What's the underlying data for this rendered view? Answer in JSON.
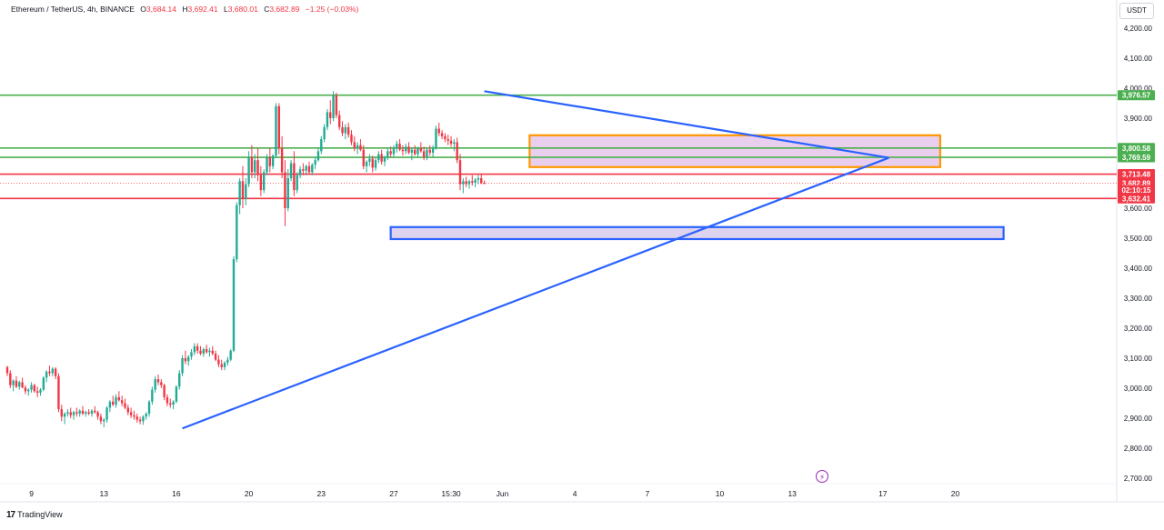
{
  "header": {
    "symbol": "Ethereum / TetherUS, 4h, BINANCE",
    "open_label": "O",
    "open_value": "3,684.14",
    "high_label": "H",
    "high_value": "3,692.41",
    "low_label": "L",
    "low_value": "3,680.01",
    "close_label": "C",
    "close_value": "3,682.89",
    "change": "−1.25 (−0.03%)"
  },
  "currency_button": "USDT",
  "footer": {
    "brand": "TradingView"
  },
  "colors": {
    "bull": "#22ab94",
    "bear": "#f23645",
    "green_line": "#4caf50",
    "red_line": "#f23645",
    "trend_line": "#2962ff",
    "orange_box": "#ff9800",
    "box_fill": "#e1bee7",
    "blue_box_fill": "#d1c4e9",
    "icons": "#9c27b0"
  },
  "chart_data": {
    "type": "candlestick",
    "y_axis": {
      "ticks": [
        2700,
        2800,
        2900,
        3000,
        3100,
        3200,
        3300,
        3400,
        3500,
        3600,
        3700,
        3800,
        3900,
        4000,
        4100,
        4200
      ],
      "tick_labels": [
        "2,700.00",
        "2,800.00",
        "2,900.00",
        "3,000.00",
        "3,100.00",
        "3,200.00",
        "3,300.00",
        "3,400.00",
        "3,500.00",
        "3,600.00",
        "3,700.00",
        "3,800.00",
        "3,900.00",
        "4,000.00",
        "4,100.00",
        "4,200.00"
      ],
      "range": [
        2670,
        4240
      ]
    },
    "x_axis": {
      "labels": [
        "9",
        "13",
        "16",
        "20",
        "23",
        "27",
        "15:30",
        "Jun",
        "4",
        "7",
        "10",
        "13",
        "17",
        "20"
      ],
      "bar_index": [
        8,
        32,
        56,
        80,
        104,
        128,
        147,
        164,
        188,
        212,
        236,
        260,
        290,
        314
      ],
      "bar_range": [
        -4,
        360
      ]
    },
    "price_labels": [
      {
        "text": "3,976.57",
        "value": 3976.57,
        "kind": "green"
      },
      {
        "text": "3,800.58",
        "value": 3800.58,
        "kind": "green"
      },
      {
        "text": "3,769.59",
        "value": 3769.59,
        "kind": "green"
      },
      {
        "text": "3,713.48",
        "value": 3713.48,
        "kind": "red"
      },
      {
        "text": "3,682.89",
        "value": 3682.89,
        "kind": "red"
      },
      {
        "text": "02:10:15",
        "value": 3660,
        "kind": "red"
      },
      {
        "text": "3,632.41",
        "value": 3632.41,
        "kind": "red"
      }
    ],
    "horizontal_lines": [
      {
        "value": 3976.57,
        "kind": "green"
      },
      {
        "value": 3800.58,
        "kind": "green"
      },
      {
        "value": 3769.59,
        "kind": "green"
      },
      {
        "value": 3713.48,
        "kind": "red"
      },
      {
        "value": 3632.41,
        "kind": "red"
      },
      {
        "value": 3682.89,
        "kind": "dotted"
      }
    ],
    "trend_lines": [
      {
        "from": [
          58,
          2866
        ],
        "to": [
          292,
          3768
        ]
      },
      {
        "from": [
          158,
          3990
        ],
        "to": [
          292,
          3768
        ]
      }
    ],
    "boxes": [
      {
        "x": [
          173,
          309
        ],
        "y": [
          3737,
          3843
        ],
        "border": "orange",
        "fill": "purple"
      },
      {
        "x": [
          127,
          330
        ],
        "y": [
          3497,
          3537
        ],
        "border": "blue",
        "fill": "lavender"
      }
    ],
    "candles": [
      [
        3070,
        3075,
        3040,
        3050
      ],
      [
        3050,
        3060,
        3000,
        3010
      ],
      [
        3010,
        3030,
        2990,
        3025
      ],
      [
        3025,
        3040,
        3000,
        3005
      ],
      [
        3005,
        3025,
        2995,
        3020
      ],
      [
        3020,
        3035,
        3000,
        3002
      ],
      [
        3002,
        3010,
        2980,
        2990
      ],
      [
        2990,
        3000,
        2975,
        2995
      ],
      [
        2995,
        3020,
        2985,
        3010
      ],
      [
        3010,
        3015,
        2985,
        2990
      ],
      [
        2990,
        3005,
        2970,
        2985
      ],
      [
        2985,
        3000,
        2975,
        2995
      ],
      [
        2995,
        3040,
        2990,
        3035
      ],
      [
        3035,
        3060,
        3020,
        3055
      ],
      [
        3055,
        3075,
        3040,
        3050
      ],
      [
        3050,
        3070,
        3040,
        3065
      ],
      [
        3065,
        3070,
        3030,
        3040
      ],
      [
        3040,
        3050,
        2920,
        2930
      ],
      [
        2930,
        2945,
        2890,
        2905
      ],
      [
        2905,
        2920,
        2880,
        2915
      ],
      [
        2915,
        2930,
        2905,
        2920
      ],
      [
        2920,
        2935,
        2900,
        2910
      ],
      [
        2910,
        2925,
        2895,
        2920
      ],
      [
        2920,
        2935,
        2905,
        2915
      ],
      [
        2915,
        2930,
        2905,
        2925
      ],
      [
        2925,
        2940,
        2910,
        2915
      ],
      [
        2915,
        2925,
        2905,
        2920
      ],
      [
        2920,
        2930,
        2910,
        2915
      ],
      [
        2915,
        2930,
        2905,
        2925
      ],
      [
        2925,
        2940,
        2915,
        2920
      ],
      [
        2920,
        2925,
        2895,
        2905
      ],
      [
        2905,
        2915,
        2880,
        2890
      ],
      [
        2890,
        2900,
        2870,
        2895
      ],
      [
        2895,
        2940,
        2885,
        2935
      ],
      [
        2935,
        2960,
        2920,
        2955
      ],
      [
        2955,
        2975,
        2940,
        2945
      ],
      [
        2945,
        2980,
        2935,
        2970
      ],
      [
        2970,
        2990,
        2955,
        2960
      ],
      [
        2960,
        2975,
        2940,
        2950
      ],
      [
        2950,
        2965,
        2930,
        2935
      ],
      [
        2935,
        2945,
        2910,
        2920
      ],
      [
        2920,
        2935,
        2900,
        2910
      ],
      [
        2910,
        2925,
        2895,
        2905
      ],
      [
        2905,
        2915,
        2885,
        2895
      ],
      [
        2895,
        2905,
        2880,
        2890
      ],
      [
        2890,
        2910,
        2878,
        2905
      ],
      [
        2905,
        2920,
        2895,
        2915
      ],
      [
        2915,
        2960,
        2905,
        2955
      ],
      [
        2955,
        3005,
        2945,
        2995
      ],
      [
        2995,
        3040,
        2985,
        3030
      ],
      [
        3030,
        3045,
        3010,
        3020
      ],
      [
        3020,
        3030,
        3000,
        3010
      ],
      [
        3010,
        3015,
        2960,
        2970
      ],
      [
        2970,
        2980,
        2940,
        2950
      ],
      [
        2950,
        2965,
        2935,
        2945
      ],
      [
        2945,
        2960,
        2930,
        2955
      ],
      [
        2955,
        3010,
        2950,
        3005
      ],
      [
        3005,
        3060,
        2995,
        3050
      ],
      [
        3050,
        3110,
        3040,
        3100
      ],
      [
        3100,
        3125,
        3080,
        3090
      ],
      [
        3090,
        3110,
        3075,
        3105
      ],
      [
        3105,
        3130,
        3095,
        3120
      ],
      [
        3120,
        3150,
        3110,
        3140
      ],
      [
        3140,
        3150,
        3115,
        3125
      ],
      [
        3125,
        3140,
        3110,
        3115
      ],
      [
        3115,
        3135,
        3105,
        3130
      ],
      [
        3130,
        3145,
        3115,
        3120
      ],
      [
        3120,
        3135,
        3105,
        3125
      ],
      [
        3125,
        3140,
        3110,
        3115
      ],
      [
        3115,
        3125,
        3090,
        3095
      ],
      [
        3095,
        3110,
        3070,
        3080
      ],
      [
        3080,
        3095,
        3060,
        3070
      ],
      [
        3070,
        3090,
        3060,
        3085
      ],
      [
        3085,
        3105,
        3075,
        3095
      ],
      [
        3095,
        3130,
        3090,
        3125
      ],
      [
        3125,
        3440,
        3120,
        3430
      ],
      [
        3430,
        3620,
        3420,
        3610
      ],
      [
        3610,
        3700,
        3580,
        3690
      ],
      [
        3690,
        3740,
        3600,
        3630
      ],
      [
        3630,
        3700,
        3610,
        3680
      ],
      [
        3680,
        3790,
        3670,
        3770
      ],
      [
        3770,
        3810,
        3700,
        3720
      ],
      [
        3720,
        3780,
        3700,
        3760
      ],
      [
        3760,
        3800,
        3690,
        3710
      ],
      [
        3710,
        3740,
        3640,
        3660
      ],
      [
        3660,
        3730,
        3650,
        3720
      ],
      [
        3720,
        3780,
        3710,
        3770
      ],
      [
        3770,
        3800,
        3720,
        3740
      ],
      [
        3740,
        3780,
        3730,
        3775
      ],
      [
        3775,
        3950,
        3770,
        3940
      ],
      [
        3940,
        3950,
        3780,
        3800
      ],
      [
        3800,
        3840,
        3700,
        3720
      ],
      [
        3720,
        3760,
        3540,
        3600
      ],
      [
        3600,
        3730,
        3590,
        3700
      ],
      [
        3700,
        3760,
        3690,
        3750
      ],
      [
        3750,
        3790,
        3640,
        3660
      ],
      [
        3660,
        3720,
        3650,
        3710
      ],
      [
        3710,
        3740,
        3700,
        3730
      ],
      [
        3730,
        3750,
        3710,
        3725
      ],
      [
        3725,
        3745,
        3710,
        3740
      ],
      [
        3740,
        3755,
        3715,
        3720
      ],
      [
        3720,
        3750,
        3710,
        3745
      ],
      [
        3745,
        3770,
        3730,
        3760
      ],
      [
        3760,
        3800,
        3755,
        3790
      ],
      [
        3790,
        3840,
        3780,
        3830
      ],
      [
        3830,
        3880,
        3820,
        3870
      ],
      [
        3870,
        3930,
        3860,
        3920
      ],
      [
        3920,
        3960,
        3880,
        3900
      ],
      [
        3900,
        3990,
        3890,
        3975
      ],
      [
        3975,
        3985,
        3900,
        3910
      ],
      [
        3910,
        3925,
        3860,
        3870
      ],
      [
        3870,
        3890,
        3840,
        3850
      ],
      [
        3850,
        3880,
        3830,
        3870
      ],
      [
        3870,
        3885,
        3835,
        3845
      ],
      [
        3845,
        3860,
        3810,
        3820
      ],
      [
        3820,
        3840,
        3790,
        3800
      ],
      [
        3800,
        3820,
        3780,
        3810
      ],
      [
        3810,
        3830,
        3790,
        3795
      ],
      [
        3795,
        3810,
        3730,
        3740
      ],
      [
        3740,
        3760,
        3720,
        3755
      ],
      [
        3755,
        3780,
        3740,
        3765
      ],
      [
        3765,
        3775,
        3720,
        3735
      ],
      [
        3735,
        3770,
        3725,
        3760
      ],
      [
        3760,
        3790,
        3750,
        3780
      ],
      [
        3780,
        3795,
        3745,
        3755
      ],
      [
        3755,
        3775,
        3740,
        3770
      ],
      [
        3770,
        3800,
        3760,
        3790
      ],
      [
        3790,
        3805,
        3770,
        3780
      ],
      [
        3780,
        3810,
        3770,
        3800
      ],
      [
        3800,
        3825,
        3785,
        3815
      ],
      [
        3815,
        3830,
        3790,
        3795
      ],
      [
        3795,
        3810,
        3775,
        3790
      ],
      [
        3790,
        3815,
        3780,
        3805
      ],
      [
        3805,
        3820,
        3780,
        3785
      ],
      [
        3785,
        3800,
        3760,
        3795
      ],
      [
        3795,
        3810,
        3775,
        3780
      ],
      [
        3780,
        3805,
        3770,
        3800
      ],
      [
        3800,
        3820,
        3785,
        3790
      ],
      [
        3790,
        3805,
        3760,
        3770
      ],
      [
        3770,
        3800,
        3760,
        3795
      ],
      [
        3795,
        3810,
        3775,
        3785
      ],
      [
        3785,
        3810,
        3770,
        3800
      ],
      [
        3800,
        3875,
        3795,
        3865
      ],
      [
        3865,
        3885,
        3840,
        3850
      ],
      [
        3850,
        3860,
        3830,
        3840
      ],
      [
        3840,
        3850,
        3820,
        3830
      ],
      [
        3830,
        3845,
        3810,
        3825
      ],
      [
        3825,
        3840,
        3805,
        3815
      ],
      [
        3815,
        3830,
        3790,
        3820
      ],
      [
        3820,
        3835,
        3750,
        3760
      ],
      [
        3760,
        3780,
        3660,
        3680
      ],
      [
        3680,
        3700,
        3650,
        3690
      ],
      [
        3690,
        3705,
        3670,
        3680
      ],
      [
        3680,
        3695,
        3665,
        3690
      ],
      [
        3690,
        3710,
        3675,
        3685
      ],
      [
        3685,
        3700,
        3670,
        3695
      ],
      [
        3695,
        3710,
        3680,
        3700
      ],
      [
        3700,
        3712,
        3680,
        3684
      ],
      [
        3684,
        3692,
        3680,
        3683
      ]
    ]
  }
}
